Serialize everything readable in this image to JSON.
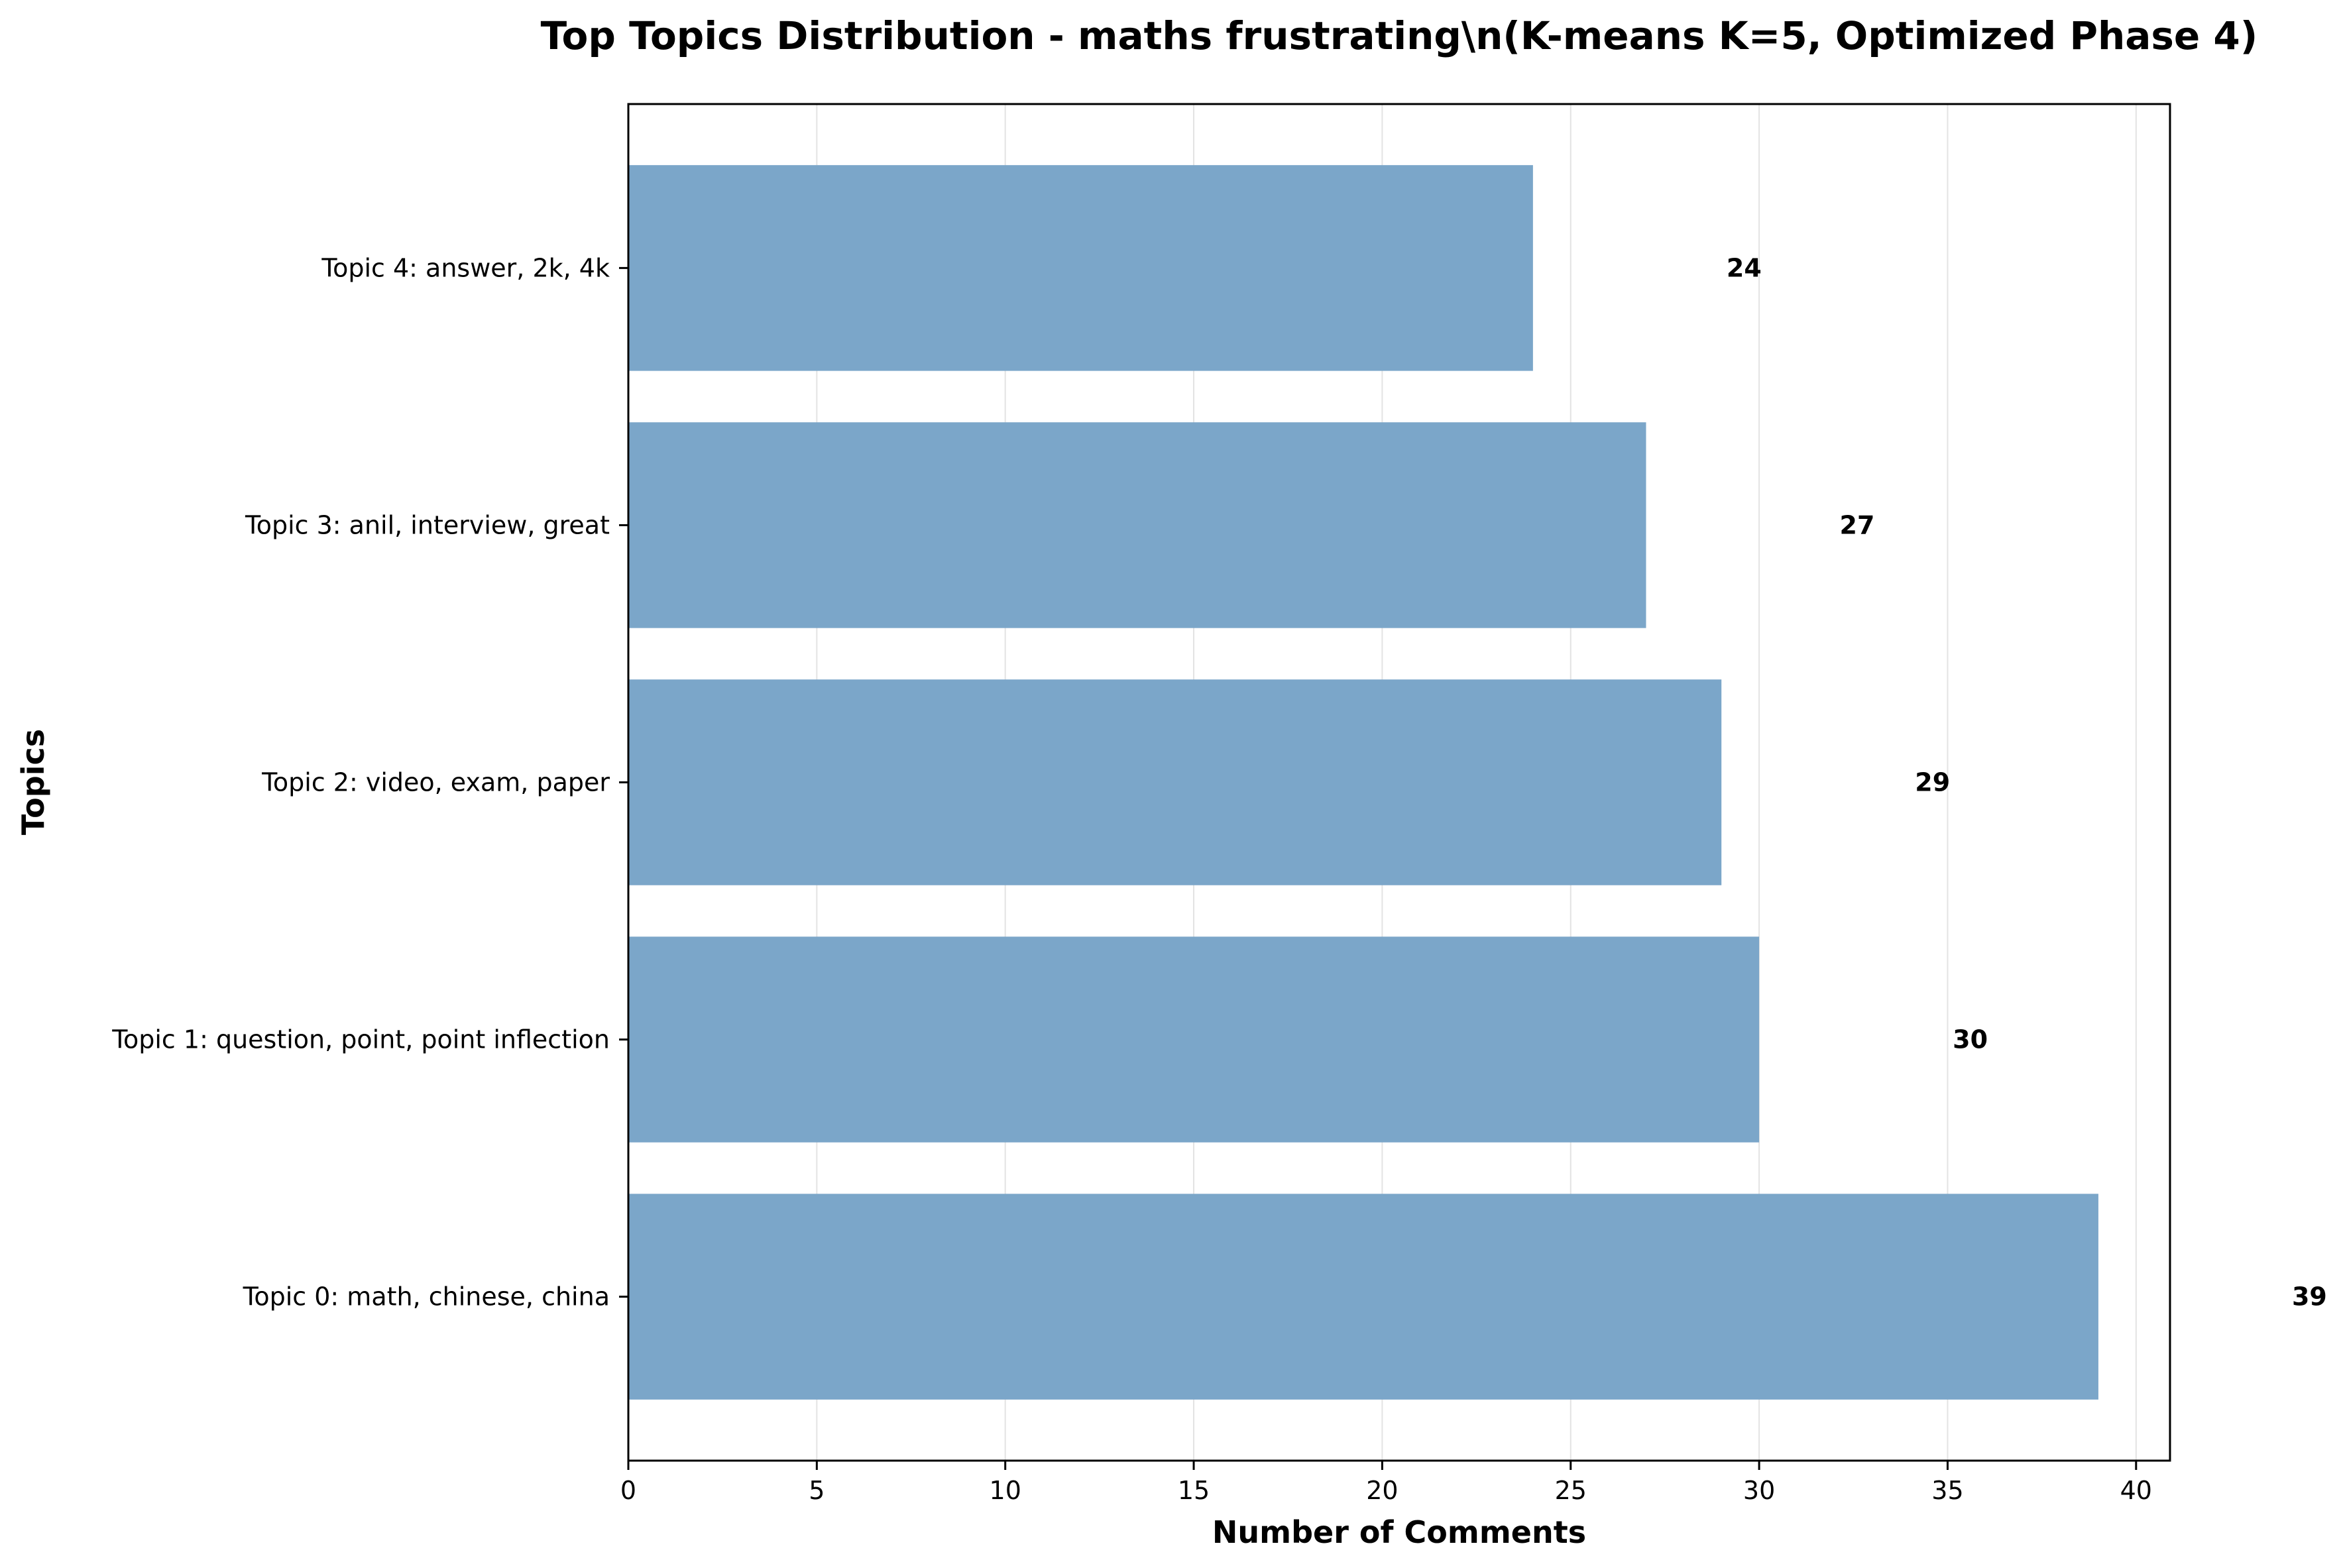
{
  "chart_data": {
    "type": "bar",
    "orientation": "horizontal",
    "title": "Top Topics Distribution - maths frustrating\\n(K-means K=5, Optimized Phase 4)",
    "xlabel": "Number of Comments",
    "ylabel": "Topics",
    "categories": [
      "Topic 4: answer, 2k, 4k",
      "Topic 3: anil, interview, great",
      "Topic 2: video, exam, paper",
      "Topic 1: question, point, point inflection",
      "Topic 0: math, chinese, china"
    ],
    "values": [
      24,
      27,
      29,
      30,
      39
    ],
    "data_labels": [
      "24",
      "27",
      "29",
      "30",
      "39"
    ],
    "xlim": [
      0,
      40.9
    ],
    "xticks": [
      0,
      5,
      10,
      15,
      20,
      25,
      30,
      35,
      40
    ],
    "xtick_labels": [
      "0",
      "5",
      "10",
      "15",
      "20",
      "25",
      "30",
      "35",
      "40"
    ],
    "grid": "vertical",
    "bar_color": "#7ba6c9",
    "grid_color": "#e3e3e3"
  }
}
